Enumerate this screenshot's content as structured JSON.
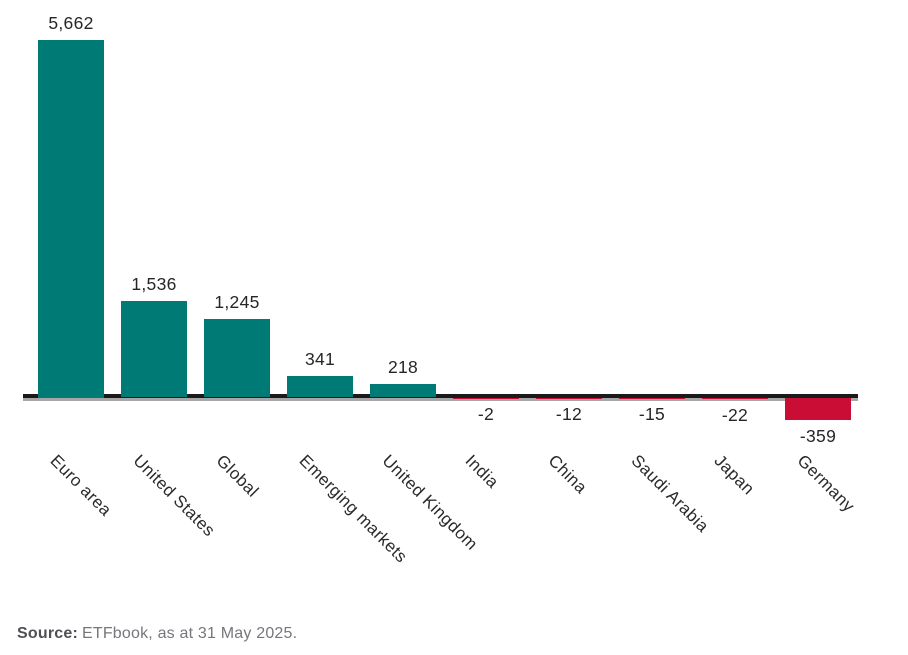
{
  "chart_data": {
    "type": "bar",
    "categories": [
      "Euro area",
      "United States",
      "Global",
      "Emerging markets",
      "United Kingdom",
      "India",
      "China",
      "Saudi Arabia",
      "Japan",
      "Germany"
    ],
    "values": [
      5662,
      1536,
      1245,
      341,
      218,
      -2,
      -12,
      -15,
      -22,
      -359
    ],
    "value_labels": [
      "5,662",
      "1,536",
      "1,245",
      "341",
      "218",
      "-2",
      "-12",
      "-15",
      "-22",
      "-359"
    ],
    "title": "",
    "xlabel": "",
    "ylabel": "",
    "ylim": [
      -400,
      5700
    ],
    "grid": false,
    "legend_position": "none",
    "x_label_rotation_deg": 45,
    "positive_bar_color": "#007a75",
    "negative_bar_color": "#c90d35",
    "zero_line_color": "#1a1a1a",
    "axis_line_color": "#a6a6a6"
  },
  "footer": {
    "source_label": "Source:",
    "source_text": "ETFbook, as at 31 May 2025."
  }
}
